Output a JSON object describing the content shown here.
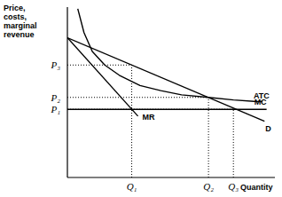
{
  "chart_data": {
    "type": "line",
    "y_label": "Price, costs, marginal revenue",
    "x_label": "Quantity",
    "xlim": [
      0,
      100
    ],
    "ylim": [
      0,
      100
    ],
    "xticks": [
      {
        "value": 31,
        "label": "Q₁"
      },
      {
        "value": 68,
        "label": "Q₂"
      },
      {
        "value": 80,
        "label": "Q₃"
      }
    ],
    "yticks": [
      {
        "value": 40,
        "label": "P₁"
      },
      {
        "value": 47,
        "label": "P₂"
      },
      {
        "value": 66,
        "label": "P₃"
      }
    ],
    "grid": true,
    "tick_labels": true,
    "series": [
      {
        "name": "D",
        "color": "#000000",
        "x": [
          0,
          95
        ],
        "values": [
          82,
          33
        ]
      },
      {
        "name": "MR",
        "color": "#000000",
        "x": [
          0,
          34
        ],
        "values": [
          82,
          36
        ]
      },
      {
        "name": "MC",
        "color": "#000000",
        "x": [
          0,
          96
        ],
        "values": [
          40,
          40
        ]
      },
      {
        "name": "ATC",
        "color": "#000000",
        "x": [
          5,
          8,
          12,
          18,
          25,
          35,
          45,
          55,
          68,
          80,
          90,
          94
        ],
        "values": [
          99,
          85,
          74,
          66,
          60,
          54,
          51,
          48.5,
          47,
          45.5,
          44.7,
          44.5
        ]
      }
    ]
  }
}
